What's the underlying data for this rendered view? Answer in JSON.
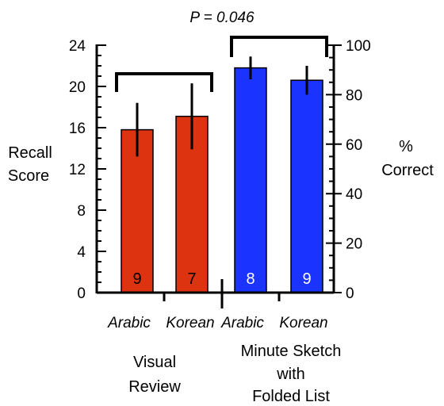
{
  "chart_data": {
    "type": "bar",
    "title": "",
    "annotation": "P = 0.046",
    "ylabel_left": [
      "Recall",
      "Score"
    ],
    "ylabel_right": [
      "%",
      "Correct"
    ],
    "ylim_left": [
      0,
      24
    ],
    "ylim_right": [
      0,
      100
    ],
    "left_ticks": [
      "0",
      "4",
      "8",
      "12",
      "16",
      "20",
      "24"
    ],
    "right_ticks": [
      "0",
      "20",
      "40",
      "60",
      "80",
      "100"
    ],
    "categories": [
      "Arabic",
      "Korean",
      "Arabic",
      "Korean"
    ],
    "values": [
      15.8,
      17.1,
      21.8,
      20.6
    ],
    "error": [
      2.6,
      3.2,
      1.1,
      1.4
    ],
    "counts": [
      "9",
      "7",
      "8",
      "9"
    ],
    "bar_colors": [
      "#dd3311",
      "#dd3311",
      "#1a33ff",
      "#1a33ff"
    ],
    "count_colors": [
      "#000000",
      "#000000",
      "#ffffff",
      "#ffffff"
    ],
    "groups": [
      {
        "label": [
          "Visual",
          "Review"
        ]
      },
      {
        "label": [
          "Minute Sketch",
          "with",
          "Folded List"
        ]
      }
    ],
    "grid": false,
    "legend": "none"
  }
}
